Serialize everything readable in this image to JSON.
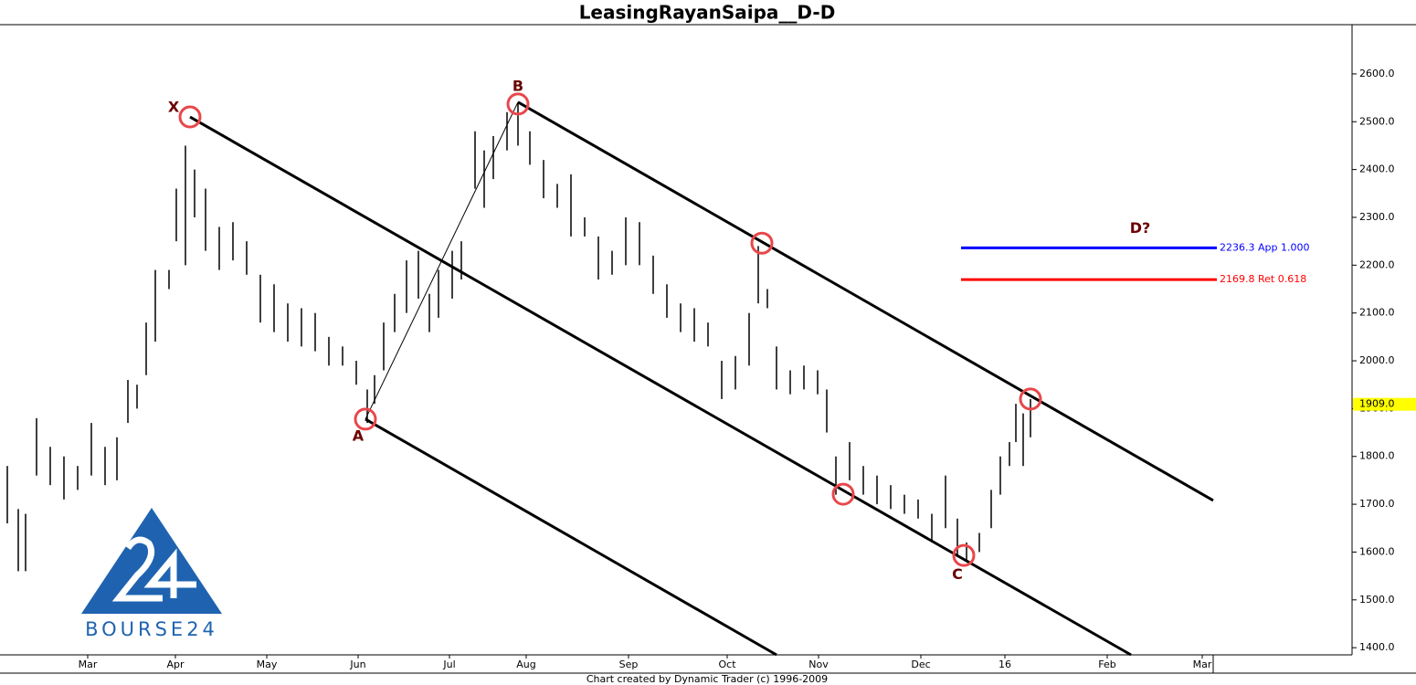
{
  "chart_data": {
    "type": "range-bar",
    "title": "LeasingRayanSaipa__D-D",
    "footer": "Chart created by Dynamic Trader  (c) 1996-2009",
    "logo_text": "BOURSE24",
    "color": "#000000",
    "xlim": [
      0,
      370
    ],
    "ylim": [
      1385,
      2703
    ],
    "xticks": [
      {
        "value": 24,
        "label": "Mar"
      },
      {
        "value": 48,
        "label": "Apr"
      },
      {
        "value": 73,
        "label": "May"
      },
      {
        "value": 98,
        "label": "Jun"
      },
      {
        "value": 123,
        "label": "Jul"
      },
      {
        "value": 144,
        "label": "Aug"
      },
      {
        "value": 172,
        "label": "Sep"
      },
      {
        "value": 199,
        "label": "Oct"
      },
      {
        "value": 224,
        "label": "Nov"
      },
      {
        "value": 252,
        "label": "Dec"
      },
      {
        "value": 275,
        "label": "16"
      },
      {
        "value": 303,
        "label": "Feb"
      },
      {
        "value": 329,
        "label": "Mar"
      }
    ],
    "yticks": [
      {
        "value": 1400,
        "label": "1400.0"
      },
      {
        "value": 1500,
        "label": "1500.0"
      },
      {
        "value": 1600,
        "label": "1600.0"
      },
      {
        "value": 1700,
        "label": "1700.0"
      },
      {
        "value": 1800,
        "label": "1800.0"
      },
      {
        "value": 1900,
        "label": "1900.0"
      },
      {
        "value": 2000,
        "label": "2000.0"
      },
      {
        "value": 2100,
        "label": "2100.0"
      },
      {
        "value": 2200,
        "label": "2200.0"
      },
      {
        "value": 2300,
        "label": "2300.0"
      },
      {
        "value": 2400,
        "label": "2400.0"
      },
      {
        "value": 2500,
        "label": "2500.0"
      },
      {
        "value": 2600,
        "label": "2600.0"
      }
    ],
    "last_price": {
      "value": 1909,
      "label": "1909.0"
    },
    "bars": {
      "x": [
        2,
        5,
        7,
        10,
        13.75,
        17.5,
        21.25,
        25,
        28.75,
        32,
        35,
        37.5,
        40,
        42.5,
        46.25,
        48.25,
        50.75,
        53.25,
        56.25,
        60,
        63.75,
        67.5,
        71.25,
        75,
        78.75,
        82.5,
        86.25,
        90,
        93.75,
        97.5,
        100.5,
        102.5,
        105,
        108,
        111.25,
        114.5,
        117.5,
        120,
        123.75,
        126.25,
        130,
        132.5,
        135,
        138.75,
        141.75,
        145,
        148.75,
        152.5,
        156.25,
        160,
        163.75,
        167.5,
        171.25,
        175,
        178.75,
        182.5,
        186.25,
        190,
        193.75,
        197.5,
        201.25,
        205,
        207.5,
        210,
        212.5,
        216.25,
        220,
        223.75,
        226.25,
        228.75,
        232.5,
        236.25,
        240,
        243.75,
        247.5,
        251.25,
        255,
        258.75,
        262,
        264.5,
        268,
        271.25,
        273.75,
        276.25,
        278,
        280,
        282
      ],
      "high": [
        1780,
        1690,
        1680,
        1880,
        1820,
        1800,
        1780,
        1870,
        1820,
        1840,
        1960,
        1950,
        2080,
        2190,
        2190,
        2360,
        2450,
        2400,
        2360,
        2280,
        2290,
        2250,
        2180,
        2160,
        2120,
        2110,
        2100,
        2050,
        2030,
        2000,
        1940,
        1970,
        2080,
        2140,
        2210,
        2230,
        2140,
        2190,
        2230,
        2250,
        2480,
        2440,
        2470,
        2520,
        2540,
        2480,
        2420,
        2370,
        2390,
        2300,
        2260,
        2230,
        2300,
        2290,
        2220,
        2160,
        2120,
        2110,
        2080,
        2000,
        2010,
        2100,
        2240,
        2150,
        2030,
        1980,
        1990,
        1980,
        1940,
        1800,
        1830,
        1780,
        1760,
        1740,
        1720,
        1710,
        1680,
        1760,
        1670,
        1620,
        1640,
        1730,
        1800,
        1830,
        1910,
        1890,
        1920
      ],
      "low": [
        1660,
        1560,
        1560,
        1760,
        1740,
        1710,
        1730,
        1760,
        1740,
        1750,
        1870,
        1900,
        1970,
        2040,
        2150,
        2250,
        2200,
        2300,
        2230,
        2190,
        2210,
        2180,
        2080,
        2060,
        2040,
        2030,
        2020,
        1990,
        1990,
        1950,
        1870,
        1910,
        1980,
        2060,
        2100,
        2130,
        2060,
        2090,
        2130,
        2170,
        2360,
        2320,
        2380,
        2440,
        2450,
        2410,
        2340,
        2320,
        2260,
        2260,
        2170,
        2180,
        2200,
        2200,
        2140,
        2090,
        2060,
        2040,
        2030,
        1920,
        1940,
        1990,
        2120,
        2110,
        1940,
        1930,
        1940,
        1930,
        1850,
        1720,
        1750,
        1720,
        1700,
        1690,
        1680,
        1670,
        1620,
        1650,
        1590,
        1580,
        1600,
        1650,
        1720,
        1780,
        1830,
        1780,
        1840
      ]
    },
    "trendlines": [
      {
        "x": [
          52,
          309.5
        ],
        "y": [
          2510,
          1385
        ],
        "width": 3
      },
      {
        "x": [
          141.75,
          332
        ],
        "y": [
          2541,
          1708
        ],
        "width": 3
      },
      {
        "x": [
          100,
          212.5
        ],
        "y": [
          1878,
          1385
        ],
        "width": 3
      },
      {
        "x": [
          100,
          141.75
        ],
        "y": [
          1878,
          2541
        ],
        "width": 1
      }
    ],
    "circles": {
      "color": "#e8474a",
      "x": [
        52,
        100,
        141.75,
        208.5,
        230.75,
        263.75,
        282
      ],
      "y": [
        2510,
        1878,
        2537,
        2246,
        1721,
        1593,
        1920
      ]
    },
    "point_labels": [
      {
        "text": "X",
        "x": 47.5,
        "y": 2529
      },
      {
        "text": "B",
        "x": 141.75,
        "y": 2573
      },
      {
        "text": "A",
        "x": 98,
        "y": 1842
      },
      {
        "text": "C",
        "x": 262,
        "y": 1552
      },
      {
        "text": "D?",
        "x": 312,
        "y": 2276
      }
    ],
    "levels": [
      {
        "value": 2236.3,
        "label": "2236.3 App 1.000",
        "color": "#0000ff",
        "x": [
          263,
          333
        ]
      },
      {
        "value": 2169.8,
        "label": "2169.8 Ret 0.618",
        "color": "#ff0000",
        "x": [
          263,
          333
        ]
      }
    ]
  }
}
